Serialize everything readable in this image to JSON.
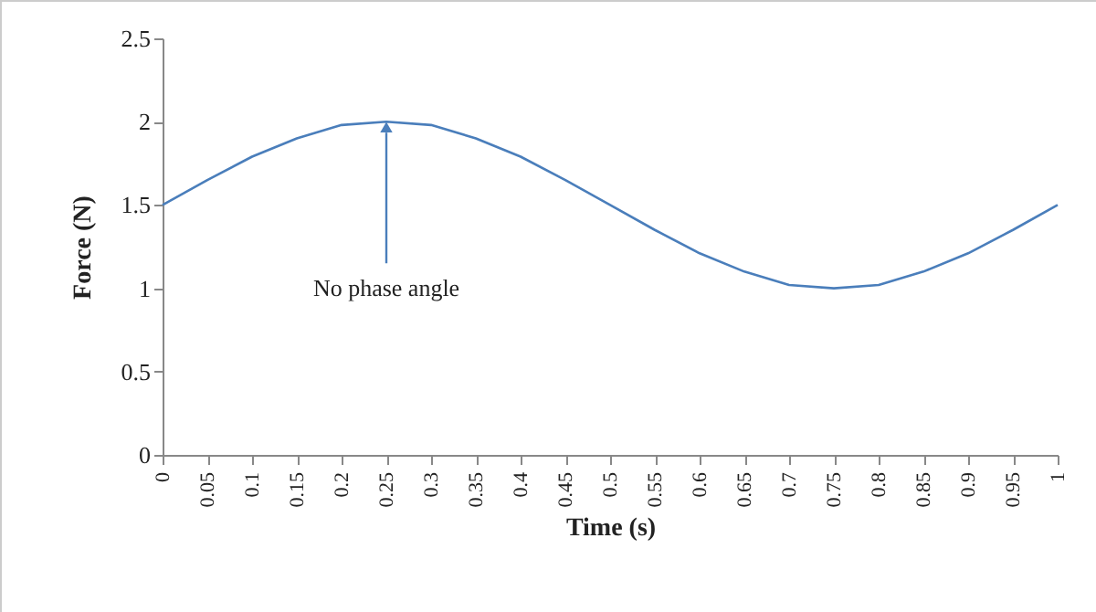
{
  "chart_data": {
    "type": "line",
    "xlabel": "Time (s)",
    "ylabel": "Force (N)",
    "x": [
      0,
      0.05,
      0.1,
      0.15,
      0.2,
      0.25,
      0.3,
      0.35,
      0.4,
      0.45,
      0.5,
      0.55,
      0.6,
      0.65,
      0.7,
      0.75,
      0.8,
      0.85,
      0.9,
      0.95,
      1
    ],
    "series": [
      {
        "color": "#4a7ebb",
        "values": [
          1.5,
          1.65,
          1.79,
          1.9,
          1.98,
          2.0,
          1.98,
          1.9,
          1.79,
          1.65,
          1.5,
          1.35,
          1.21,
          1.1,
          1.02,
          1.0,
          1.02,
          1.1,
          1.21,
          1.35,
          1.5
        ]
      }
    ],
    "xlim": [
      0,
      1
    ],
    "xticks": [
      0,
      0.05,
      0.1,
      0.15,
      0.2,
      0.25,
      0.3,
      0.35,
      0.4,
      0.45,
      0.5,
      0.55,
      0.6,
      0.65,
      0.7,
      0.75,
      0.8,
      0.85,
      0.9,
      0.95,
      1
    ],
    "ylim": [
      0,
      2.5
    ],
    "yticks": [
      0,
      0.5,
      1,
      1.5,
      2,
      2.5
    ],
    "grid": false,
    "legend": false,
    "marker": "none",
    "line_style": "solid",
    "annotations": [
      {
        "text": "No phase angle",
        "x": 0.25,
        "y": 2
      }
    ]
  }
}
